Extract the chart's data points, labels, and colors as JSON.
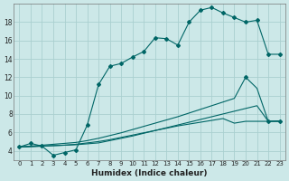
{
  "xlabel": "Humidex (Indice chaleur)",
  "bg_color": "#cce8e8",
  "grid_color": "#aad0d0",
  "line_color": "#006666",
  "xlim": [
    -0.5,
    23.5
  ],
  "ylim": [
    3.0,
    20.0
  ],
  "yticks": [
    4,
    6,
    8,
    10,
    12,
    14,
    16,
    18
  ],
  "xticks": [
    0,
    1,
    2,
    3,
    4,
    5,
    6,
    7,
    8,
    9,
    10,
    11,
    12,
    13,
    14,
    15,
    16,
    17,
    18,
    19,
    20,
    21,
    22,
    23
  ],
  "series1_x": [
    0,
    1,
    2,
    3,
    4,
    5,
    6,
    7,
    8,
    9,
    10,
    11,
    12,
    13,
    14,
    15,
    16,
    17,
    18,
    19,
    20,
    21,
    22,
    23
  ],
  "series1_y": [
    4.4,
    4.8,
    4.5,
    3.5,
    3.8,
    4.1,
    6.8,
    11.2,
    13.2,
    13.5,
    14.2,
    14.8,
    16.3,
    16.2,
    15.5,
    18.0,
    19.3,
    19.6,
    19.0,
    18.5,
    18.0,
    18.2,
    14.5,
    14.5
  ],
  "series1_markers": true,
  "series2_x": [
    0,
    1,
    2,
    3,
    4,
    5,
    6,
    7,
    8,
    9,
    10,
    11,
    12,
    13,
    14,
    15,
    16,
    17,
    18,
    19,
    20,
    21,
    22,
    23
  ],
  "series2_y": [
    4.4,
    4.45,
    4.5,
    4.55,
    4.6,
    4.7,
    4.85,
    5.0,
    5.2,
    5.45,
    5.7,
    5.95,
    6.2,
    6.45,
    6.7,
    6.9,
    7.1,
    7.3,
    7.5,
    7.0,
    7.2,
    7.2,
    7.2,
    7.25
  ],
  "series3_x": [
    0,
    1,
    2,
    3,
    4,
    5,
    6,
    7,
    8,
    9,
    10,
    11,
    12,
    13,
    14,
    15,
    16,
    17,
    18,
    19,
    20,
    21,
    22,
    23
  ],
  "series3_y": [
    4.4,
    4.45,
    4.5,
    4.55,
    4.6,
    4.65,
    4.75,
    4.85,
    5.1,
    5.35,
    5.6,
    5.9,
    6.2,
    6.5,
    6.8,
    7.1,
    7.4,
    7.7,
    8.0,
    8.3,
    8.6,
    8.9,
    7.2,
    7.2
  ],
  "series4_x": [
    0,
    1,
    2,
    3,
    4,
    5,
    6,
    7,
    8,
    9,
    10,
    11,
    12,
    13,
    14,
    15,
    16,
    17,
    18,
    19,
    20,
    21,
    22,
    23
  ],
  "series4_y": [
    4.4,
    4.5,
    4.6,
    4.7,
    4.8,
    4.9,
    5.1,
    5.35,
    5.65,
    5.95,
    6.3,
    6.65,
    7.0,
    7.35,
    7.7,
    8.1,
    8.5,
    8.9,
    9.3,
    9.7,
    12.0,
    10.8,
    7.2,
    7.2
  ]
}
